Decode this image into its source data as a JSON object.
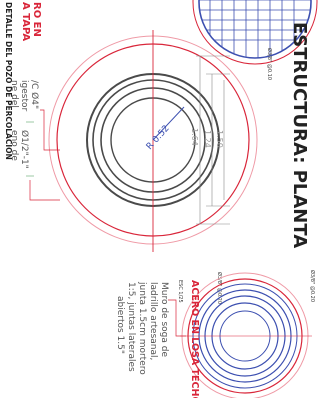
{
  "sheet": {
    "title": "ESTRUCTURA: PLANTA",
    "bottom_title": "DETALLE DEL POZO DE PERCOLACION",
    "labels": {
      "acero_en_tapa_1": "RO EN",
      "acero_en_tapa_2": "A TAPA",
      "acero_losa_techo": "ACERO EN LOSA TECHO",
      "small_ref_1": "Ø3/8\" @0.10",
      "small_ref_2": "Ø3/8\" @0.20",
      "small_ref_3": "Ø3/8\" @0.20",
      "small_ref_4": "ESC 1/25"
    },
    "notes_left": [
      "ne del",
      "igestor",
      "/C Ø4\"",
      "eno de",
      "Ø1/2\"-1\""
    ],
    "notes_right": [
      "Muro de soga de",
      "ladrillo artesanal,",
      "junta 1.5cm mortero",
      "1:5, juntas laterales",
      "abiertos 1.5\""
    ],
    "dimensions": {
      "diam_outer": "1.64",
      "diam_mid": "1.24",
      "diam_inner": "1.50",
      "radius": "R 0.52"
    },
    "colors": {
      "red": "#d9263a",
      "blue": "#3c4fb0",
      "pink": "#ef9aa6",
      "dark": "#4a4a4a",
      "green": "#5aa36a"
    }
  }
}
